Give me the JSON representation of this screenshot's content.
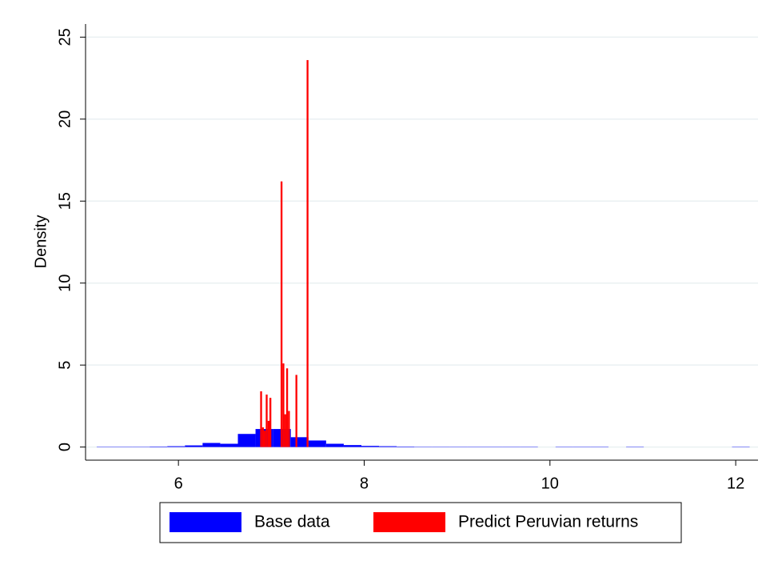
{
  "chart_data": {
    "type": "histogram",
    "y_label": "Density",
    "xlim": [
      5,
      12.24
    ],
    "ylim": [
      -0.8,
      25.8
    ],
    "xticks": [
      6,
      8,
      10,
      12
    ],
    "yticks": [
      0,
      5,
      10,
      15,
      20,
      25
    ],
    "grid": true,
    "legend": "bottom",
    "series": [
      {
        "name": "Base data",
        "color": "#0000ff",
        "bins": [
          5.12,
          5.31,
          5.5,
          5.69,
          5.88,
          6.07,
          6.26,
          6.45,
          6.64,
          6.83,
          7.02,
          7.21,
          7.4,
          7.59,
          7.78,
          7.97,
          8.16,
          8.35,
          8.54,
          8.73,
          8.92,
          9.11,
          9.3,
          9.49,
          9.68,
          9.87,
          10.06,
          10.25,
          10.44,
          10.63,
          10.82,
          11.01,
          11.2,
          11.39,
          11.58,
          11.77,
          11.96,
          12.15
        ],
        "values": [
          0.02,
          0.02,
          0.02,
          0.03,
          0.05,
          0.1,
          0.25,
          0.2,
          0.8,
          1.1,
          1.1,
          0.6,
          0.4,
          0.2,
          0.12,
          0.07,
          0.05,
          0.03,
          0.02,
          0.02,
          0.02,
          0.02,
          0.02,
          0.02,
          0.02,
          0,
          0.02,
          0.02,
          0.02,
          0,
          0.02,
          0,
          0,
          0,
          0,
          0,
          0.02
        ]
      },
      {
        "name": "Predict Peruvian returns",
        "color": "#ff0000",
        "bins": [
          6.88,
          6.9,
          6.92,
          6.94,
          6.96,
          6.98,
          7.0,
          7.02,
          7.04,
          7.06,
          7.08,
          7.1,
          7.12,
          7.14,
          7.16,
          7.18,
          7.2,
          7.22,
          7.24,
          7.26,
          7.28,
          7.3,
          7.32,
          7.34,
          7.36,
          7.38,
          7.4
        ],
        "values": [
          3.4,
          1.2,
          1.0,
          3.2,
          1.6,
          3.0,
          0,
          0,
          0,
          0,
          0,
          16.2,
          5.1,
          2.0,
          4.8,
          2.2,
          0,
          0,
          0,
          4.4,
          0,
          0,
          0,
          0,
          0,
          23.6
        ]
      }
    ]
  }
}
